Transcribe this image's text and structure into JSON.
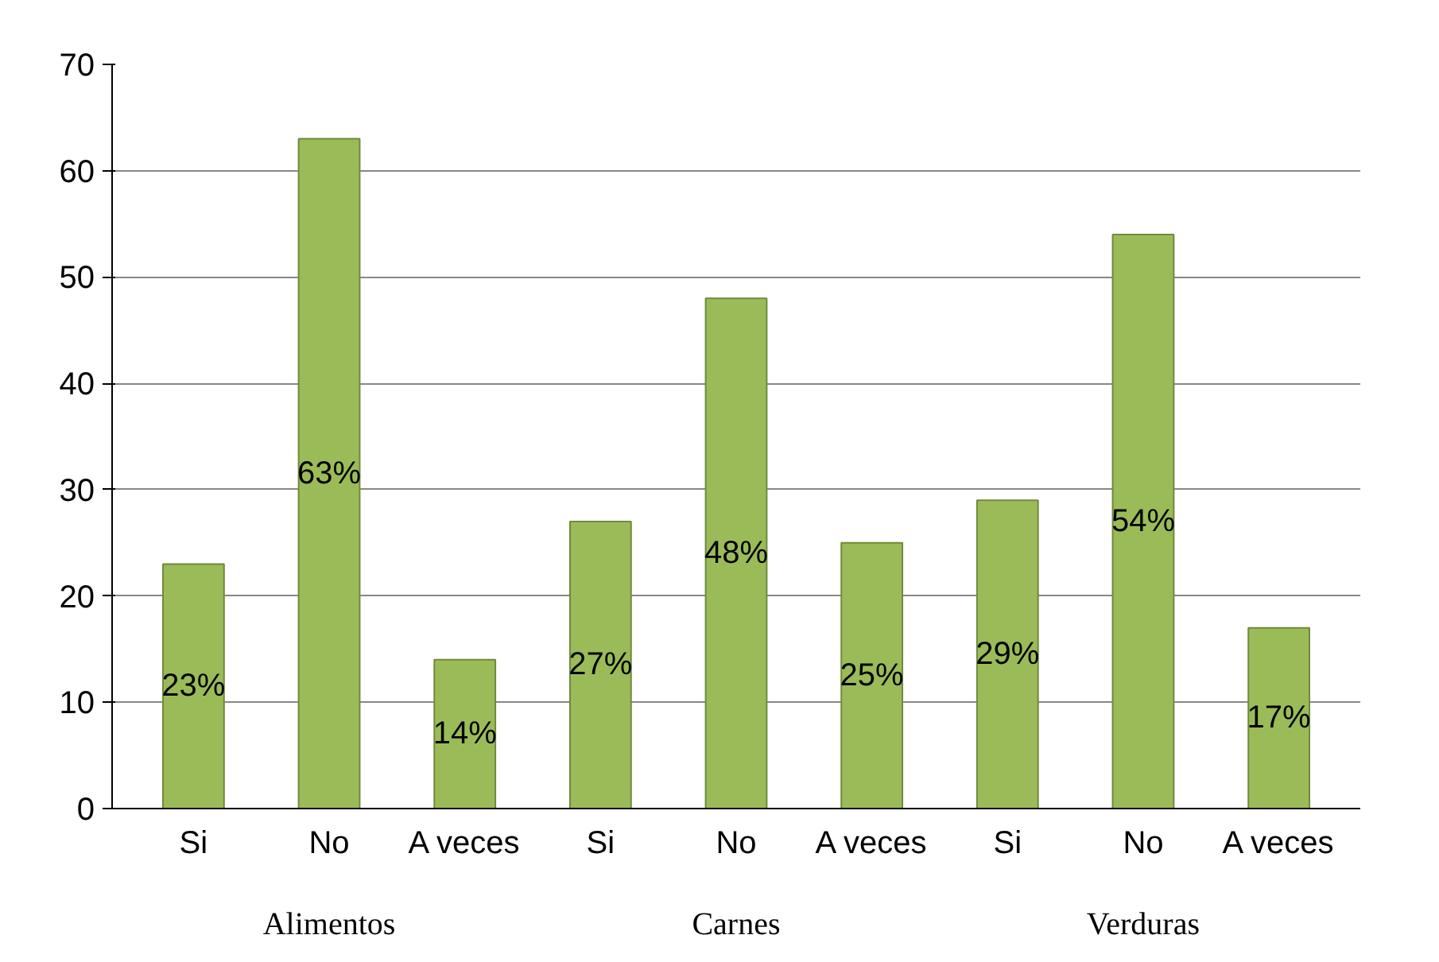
{
  "chart_data": {
    "type": "bar",
    "categories": [
      "Si",
      "No",
      "A veces",
      "Si",
      "No",
      "A veces",
      "Si",
      "No",
      "A veces"
    ],
    "values": [
      23,
      63,
      14,
      27,
      48,
      25,
      29,
      54,
      17
    ],
    "value_labels": [
      "23%",
      "63%",
      "14%",
      "27%",
      "48%",
      "25%",
      "29%",
      "54%",
      "17%"
    ],
    "color": "#9bbb59",
    "ylim": [
      0,
      70
    ],
    "yticks": [
      0,
      10,
      20,
      30,
      40,
      50,
      60,
      70
    ],
    "grid": "y",
    "annotations": [
      "Alimentos",
      "Carnes",
      "Verduras"
    ]
  }
}
